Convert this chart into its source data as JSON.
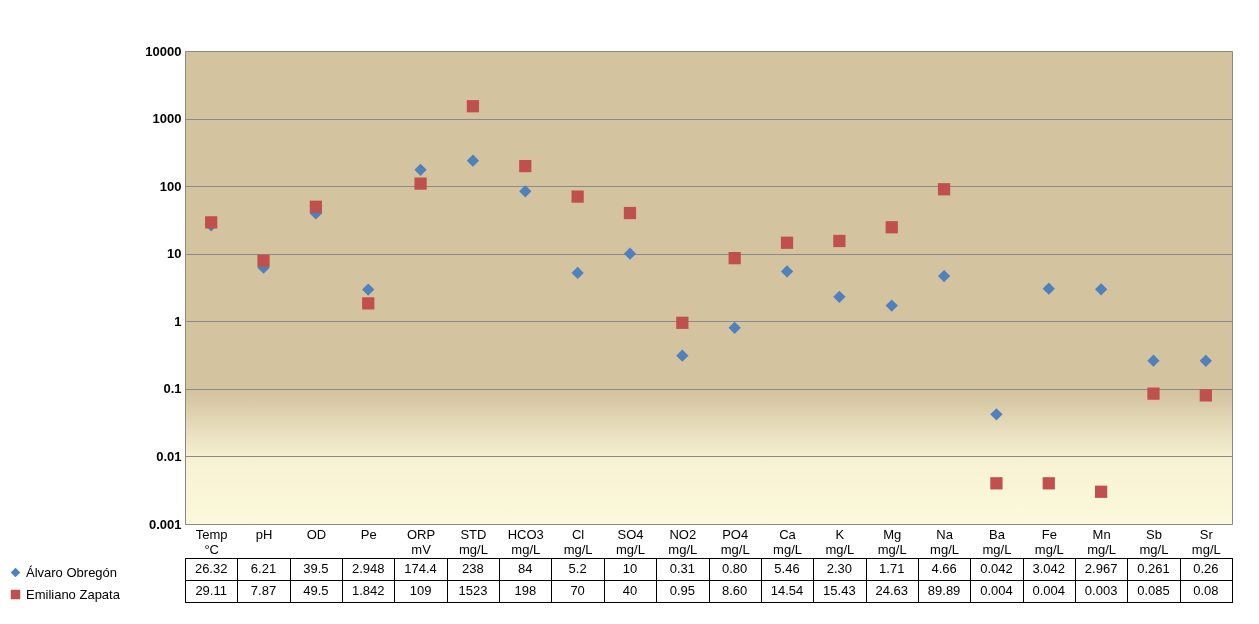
{
  "chart_data": {
    "type": "scatter",
    "log": "y",
    "ylim": [
      0.001,
      10000
    ],
    "yticks": [
      0.001,
      0.01,
      0.1,
      1,
      10,
      100,
      1000,
      10000
    ],
    "grid": "y",
    "legend": "bottom left",
    "data_labels": true,
    "categories": [
      "Temp °C",
      "pH",
      "OD",
      "Pe",
      "ORP mV",
      "STD mg/L",
      "HCO3 mg/L",
      "Cl mg/L",
      "SO4 mg/L",
      "NO2 mg/L",
      "PO4 mg/L",
      "Ca mg/L",
      "K mg/L",
      "Mg mg/L",
      "Na mg/L",
      "Ba mg/L",
      "Fe mg/L",
      "Mn mg/L",
      "Sb mg/L",
      "Sr mg/L"
    ],
    "series": [
      {
        "name": "Álvaro Obregón",
        "color": "#4f81bd",
        "marker": "diamond",
        "values": [
          26.32,
          6.21,
          39.5,
          2.948,
          174.4,
          238,
          84,
          5.2,
          10,
          0.31,
          0.8,
          5.46,
          2.3,
          1.71,
          4.66,
          0.042,
          3.042,
          2.967,
          0.261,
          0.26
        ],
        "value_labels": [
          "26.32",
          "6.21",
          "39.5",
          "2.948",
          "174.4",
          "238",
          "84",
          "5.2",
          "10",
          "0.31",
          "0.80",
          "5.46",
          "2.30",
          "1.71",
          "4.66",
          "0.042",
          "3.042",
          "2.967",
          "0.261",
          "0.26"
        ]
      },
      {
        "name": "Emiliano Zapata",
        "color": "#c0504d",
        "marker": "square",
        "values": [
          29.11,
          7.87,
          49.5,
          1.842,
          109,
          1523,
          198,
          70,
          40,
          0.95,
          8.6,
          14.54,
          15.43,
          24.63,
          89.89,
          0.004,
          0.004,
          0.003,
          0.085,
          0.08
        ],
        "value_labels": [
          "29.11",
          "7.87",
          "49.5",
          "1.842",
          "109",
          "1523",
          "198",
          "70",
          "40",
          "0.95",
          "8.60",
          "14.54",
          "15.43",
          "24.63",
          "89.89",
          "0.004",
          "0.004",
          "0.003",
          "0.085",
          "0.08"
        ]
      }
    ]
  }
}
